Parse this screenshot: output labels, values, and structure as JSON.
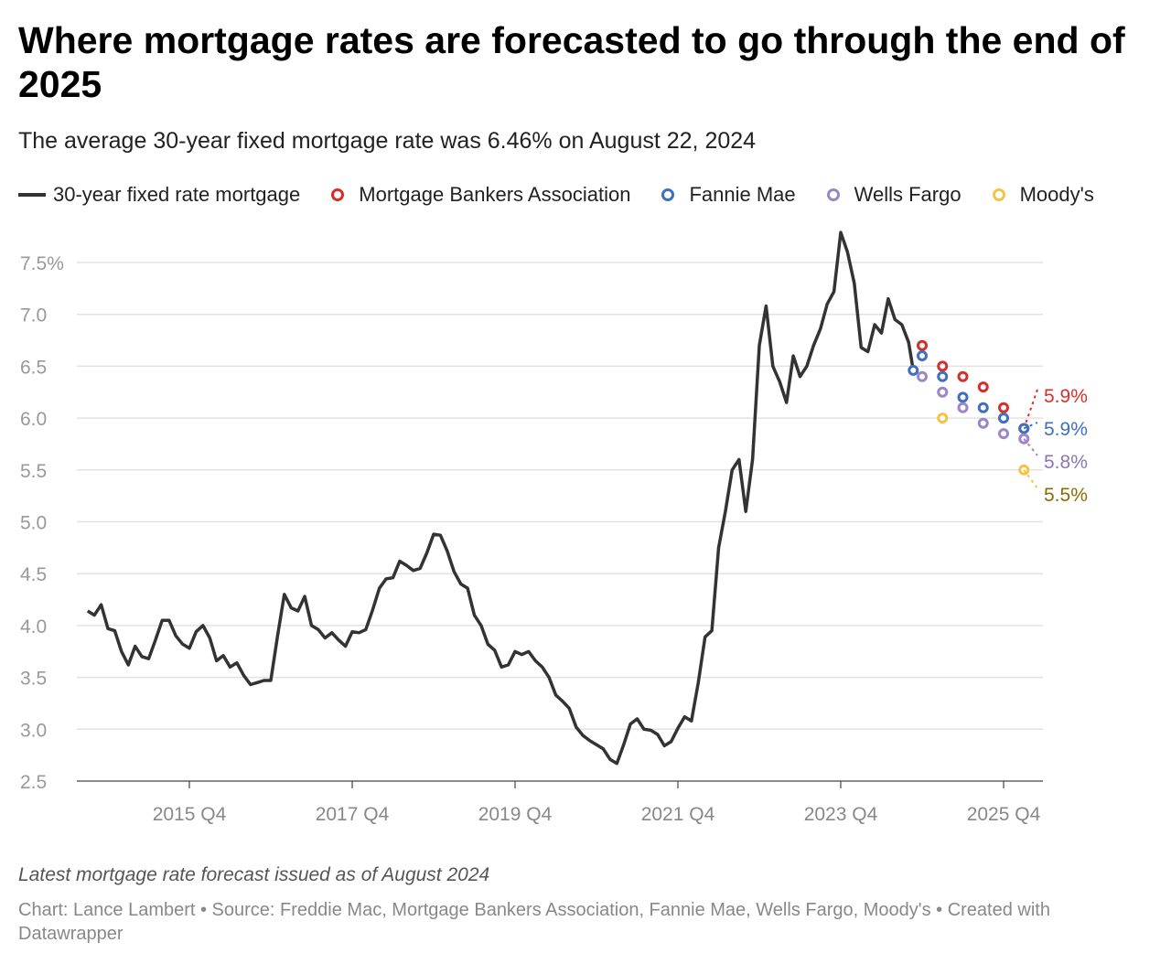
{
  "title": "Where mortgage rates are forecasted to go through the end of 2025",
  "subtitle": "The average 30-year fixed mortgage rate was 6.46% on August 22, 2024",
  "note": "Latest mortgage rate forecast issued as of August 2024",
  "footer": "Chart: Lance Lambert • Source: Freddie Mac, Mortgage Bankers Association, Fannie Mae, Wells Fargo, Moody's • Created with Datawrapper",
  "chart_data": {
    "type": "line",
    "grid": true,
    "legend_placement": "top",
    "ylim": [
      2.5,
      7.8
    ],
    "y_ticks": [
      "2.5",
      "3.0",
      "3.5",
      "4.0",
      "4.5",
      "5.0",
      "5.5",
      "6.0",
      "6.5",
      "7.0",
      "7.5%"
    ],
    "x_ticks": [
      "2015 Q4",
      "2017 Q4",
      "2019 Q4",
      "2021 Q4",
      "2023 Q4",
      "2025 Q4"
    ],
    "line_series": {
      "name": "30-year fixed rate mortgage",
      "color": "#333333",
      "points": [
        [
          "2014-07",
          4.14
        ],
        [
          "2014-08",
          4.1
        ],
        [
          "2014-09",
          4.2
        ],
        [
          "2014-10",
          3.97
        ],
        [
          "2014-11",
          3.95
        ],
        [
          "2014-12",
          3.75
        ],
        [
          "2015-01",
          3.62
        ],
        [
          "2015-02",
          3.8
        ],
        [
          "2015-03",
          3.7
        ],
        [
          "2015-04",
          3.68
        ],
        [
          "2015-05",
          3.86
        ],
        [
          "2015-06",
          4.05
        ],
        [
          "2015-07",
          4.05
        ],
        [
          "2015-08",
          3.9
        ],
        [
          "2015-09",
          3.82
        ],
        [
          "2015-10",
          3.78
        ],
        [
          "2015-11",
          3.94
        ],
        [
          "2015-12",
          4.0
        ],
        [
          "2016-01",
          3.88
        ],
        [
          "2016-02",
          3.66
        ],
        [
          "2016-03",
          3.71
        ],
        [
          "2016-04",
          3.6
        ],
        [
          "2016-05",
          3.64
        ],
        [
          "2016-06",
          3.52
        ],
        [
          "2016-07",
          3.43
        ],
        [
          "2016-08",
          3.45
        ],
        [
          "2016-09",
          3.47
        ],
        [
          "2016-10",
          3.47
        ],
        [
          "2016-11",
          3.9
        ],
        [
          "2016-12",
          4.3
        ],
        [
          "2017-01",
          4.17
        ],
        [
          "2017-02",
          4.14
        ],
        [
          "2017-03",
          4.28
        ],
        [
          "2017-04",
          4.0
        ],
        [
          "2017-05",
          3.96
        ],
        [
          "2017-06",
          3.88
        ],
        [
          "2017-07",
          3.93
        ],
        [
          "2017-08",
          3.86
        ],
        [
          "2017-09",
          3.8
        ],
        [
          "2017-10",
          3.94
        ],
        [
          "2017-11",
          3.93
        ],
        [
          "2017-12",
          3.96
        ],
        [
          "2018-01",
          4.15
        ],
        [
          "2018-02",
          4.36
        ],
        [
          "2018-03",
          4.45
        ],
        [
          "2018-04",
          4.46
        ],
        [
          "2018-05",
          4.62
        ],
        [
          "2018-06",
          4.58
        ],
        [
          "2018-07",
          4.53
        ],
        [
          "2018-08",
          4.55
        ],
        [
          "2018-09",
          4.7
        ],
        [
          "2018-10",
          4.88
        ],
        [
          "2018-11",
          4.87
        ],
        [
          "2018-12",
          4.72
        ],
        [
          "2019-01",
          4.52
        ],
        [
          "2019-02",
          4.4
        ],
        [
          "2019-03",
          4.36
        ],
        [
          "2019-04",
          4.1
        ],
        [
          "2019-05",
          4.0
        ],
        [
          "2019-06",
          3.82
        ],
        [
          "2019-07",
          3.76
        ],
        [
          "2019-08",
          3.6
        ],
        [
          "2019-09",
          3.62
        ],
        [
          "2019-10",
          3.75
        ],
        [
          "2019-11",
          3.72
        ],
        [
          "2019-12",
          3.75
        ],
        [
          "2020-01",
          3.66
        ],
        [
          "2020-02",
          3.6
        ],
        [
          "2020-03",
          3.5
        ],
        [
          "2020-04",
          3.33
        ],
        [
          "2020-05",
          3.27
        ],
        [
          "2020-06",
          3.2
        ],
        [
          "2020-07",
          3.02
        ],
        [
          "2020-08",
          2.94
        ],
        [
          "2020-09",
          2.89
        ],
        [
          "2020-10",
          2.85
        ],
        [
          "2020-11",
          2.81
        ],
        [
          "2020-12",
          2.71
        ],
        [
          "2021-01",
          2.67
        ],
        [
          "2021-02",
          2.85
        ],
        [
          "2021-03",
          3.05
        ],
        [
          "2021-04",
          3.1
        ],
        [
          "2021-05",
          3.0
        ],
        [
          "2021-06",
          2.99
        ],
        [
          "2021-07",
          2.95
        ],
        [
          "2021-08",
          2.84
        ],
        [
          "2021-09",
          2.88
        ],
        [
          "2021-10",
          3.01
        ],
        [
          "2021-11",
          3.12
        ],
        [
          "2021-12",
          3.08
        ],
        [
          "2022-01",
          3.45
        ],
        [
          "2022-02",
          3.89
        ],
        [
          "2022-03",
          3.95
        ],
        [
          "2022-04",
          4.75
        ],
        [
          "2022-05",
          5.1
        ],
        [
          "2022-06",
          5.5
        ],
        [
          "2022-07",
          5.6
        ],
        [
          "2022-08",
          5.1
        ],
        [
          "2022-09",
          5.6
        ],
        [
          "2022-10",
          6.7
        ],
        [
          "2022-11",
          7.08
        ],
        [
          "2022-12",
          6.5
        ],
        [
          "2023-01",
          6.35
        ],
        [
          "2023-02",
          6.15
        ],
        [
          "2023-03",
          6.6
        ],
        [
          "2023-04",
          6.4
        ],
        [
          "2023-05",
          6.5
        ],
        [
          "2023-06",
          6.7
        ],
        [
          "2023-07",
          6.86
        ],
        [
          "2023-08",
          7.1
        ],
        [
          "2023-09",
          7.22
        ],
        [
          "2023-10",
          7.79
        ],
        [
          "2023-11",
          7.6
        ],
        [
          "2023-12",
          7.3
        ],
        [
          "2024-01",
          6.68
        ],
        [
          "2024-02",
          6.64
        ],
        [
          "2024-03",
          6.9
        ],
        [
          "2024-04",
          6.82
        ],
        [
          "2024-05",
          7.15
        ],
        [
          "2024-06",
          6.95
        ],
        [
          "2024-07",
          6.9
        ],
        [
          "2024-08",
          6.73
        ],
        [
          "2024-08-22",
          6.46
        ]
      ]
    },
    "forecast_series": [
      {
        "name": "Mortgage Bankers Association",
        "color": "#d62f2a",
        "label_color": "#d62f2a",
        "end_label": "5.9%",
        "points": [
          [
            "2024 Q4",
            6.7
          ],
          [
            "2025 Q1",
            6.5
          ],
          [
            "2025 Q2",
            6.4
          ],
          [
            "2025 Q3",
            6.3
          ],
          [
            "2025 Q4",
            6.1
          ],
          [
            "2026 Q1",
            5.9
          ]
        ]
      },
      {
        "name": "Fannie Mae",
        "color": "#3e6fc0",
        "label_color": "#3e6fc0",
        "end_label": "5.9%",
        "points": [
          [
            "2024-08-22",
            6.46
          ],
          [
            "2024 Q4",
            6.6
          ],
          [
            "2025 Q1",
            6.4
          ],
          [
            "2025 Q2",
            6.2
          ],
          [
            "2025 Q3",
            6.1
          ],
          [
            "2025 Q4",
            6.0
          ],
          [
            "2026 Q1",
            5.9
          ]
        ]
      },
      {
        "name": "Wells Fargo",
        "color": "#9b87c8",
        "label_color": "#8a76b8",
        "end_label": "5.8%",
        "points": [
          [
            "2024 Q4",
            6.4
          ],
          [
            "2025 Q1",
            6.25
          ],
          [
            "2025 Q2",
            6.1
          ],
          [
            "2025 Q3",
            5.95
          ],
          [
            "2025 Q4",
            5.85
          ],
          [
            "2026 Q1",
            5.8
          ]
        ]
      },
      {
        "name": "Moody's",
        "color": "#f5c342",
        "label_color": "#8a6a00",
        "end_label": "5.5%",
        "points": [
          [
            "2025 Q1",
            6.0
          ],
          [
            "2026 Q1",
            5.5
          ]
        ]
      }
    ]
  }
}
